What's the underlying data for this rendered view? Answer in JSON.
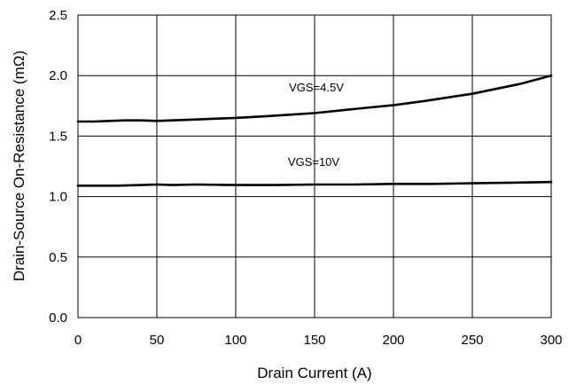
{
  "chart_data": {
    "type": "line",
    "title": "",
    "xlabel": "Drain Current (A)",
    "ylabel": "Drain-Source On-Resistance (mΩ)",
    "xlim": [
      0,
      300
    ],
    "ylim": [
      0.0,
      2.5
    ],
    "xticks": [
      0,
      50,
      100,
      150,
      200,
      250,
      300
    ],
    "yticks": [
      "0.0",
      "0.5",
      "1.0",
      "1.5",
      "2.0",
      "2.5"
    ],
    "grid": true,
    "legend": "none (inline series labels)",
    "line_color": "#000000",
    "series": [
      {
        "name": "VGS=4.5V",
        "x": [
          0,
          10,
          20,
          30,
          40,
          50,
          60,
          80,
          100,
          120,
          150,
          180,
          200,
          220,
          250,
          280,
          300
        ],
        "y": [
          1.62,
          1.62,
          1.625,
          1.63,
          1.63,
          1.625,
          1.63,
          1.64,
          1.65,
          1.665,
          1.69,
          1.73,
          1.755,
          1.79,
          1.85,
          1.93,
          2.0
        ]
      },
      {
        "name": "VGS=10V",
        "x": [
          0,
          25,
          40,
          50,
          60,
          75,
          100,
          125,
          150,
          175,
          200,
          225,
          250,
          275,
          300
        ],
        "y": [
          1.09,
          1.09,
          1.095,
          1.1,
          1.095,
          1.1,
          1.095,
          1.095,
          1.1,
          1.1,
          1.105,
          1.105,
          1.11,
          1.115,
          1.12
        ]
      }
    ]
  }
}
